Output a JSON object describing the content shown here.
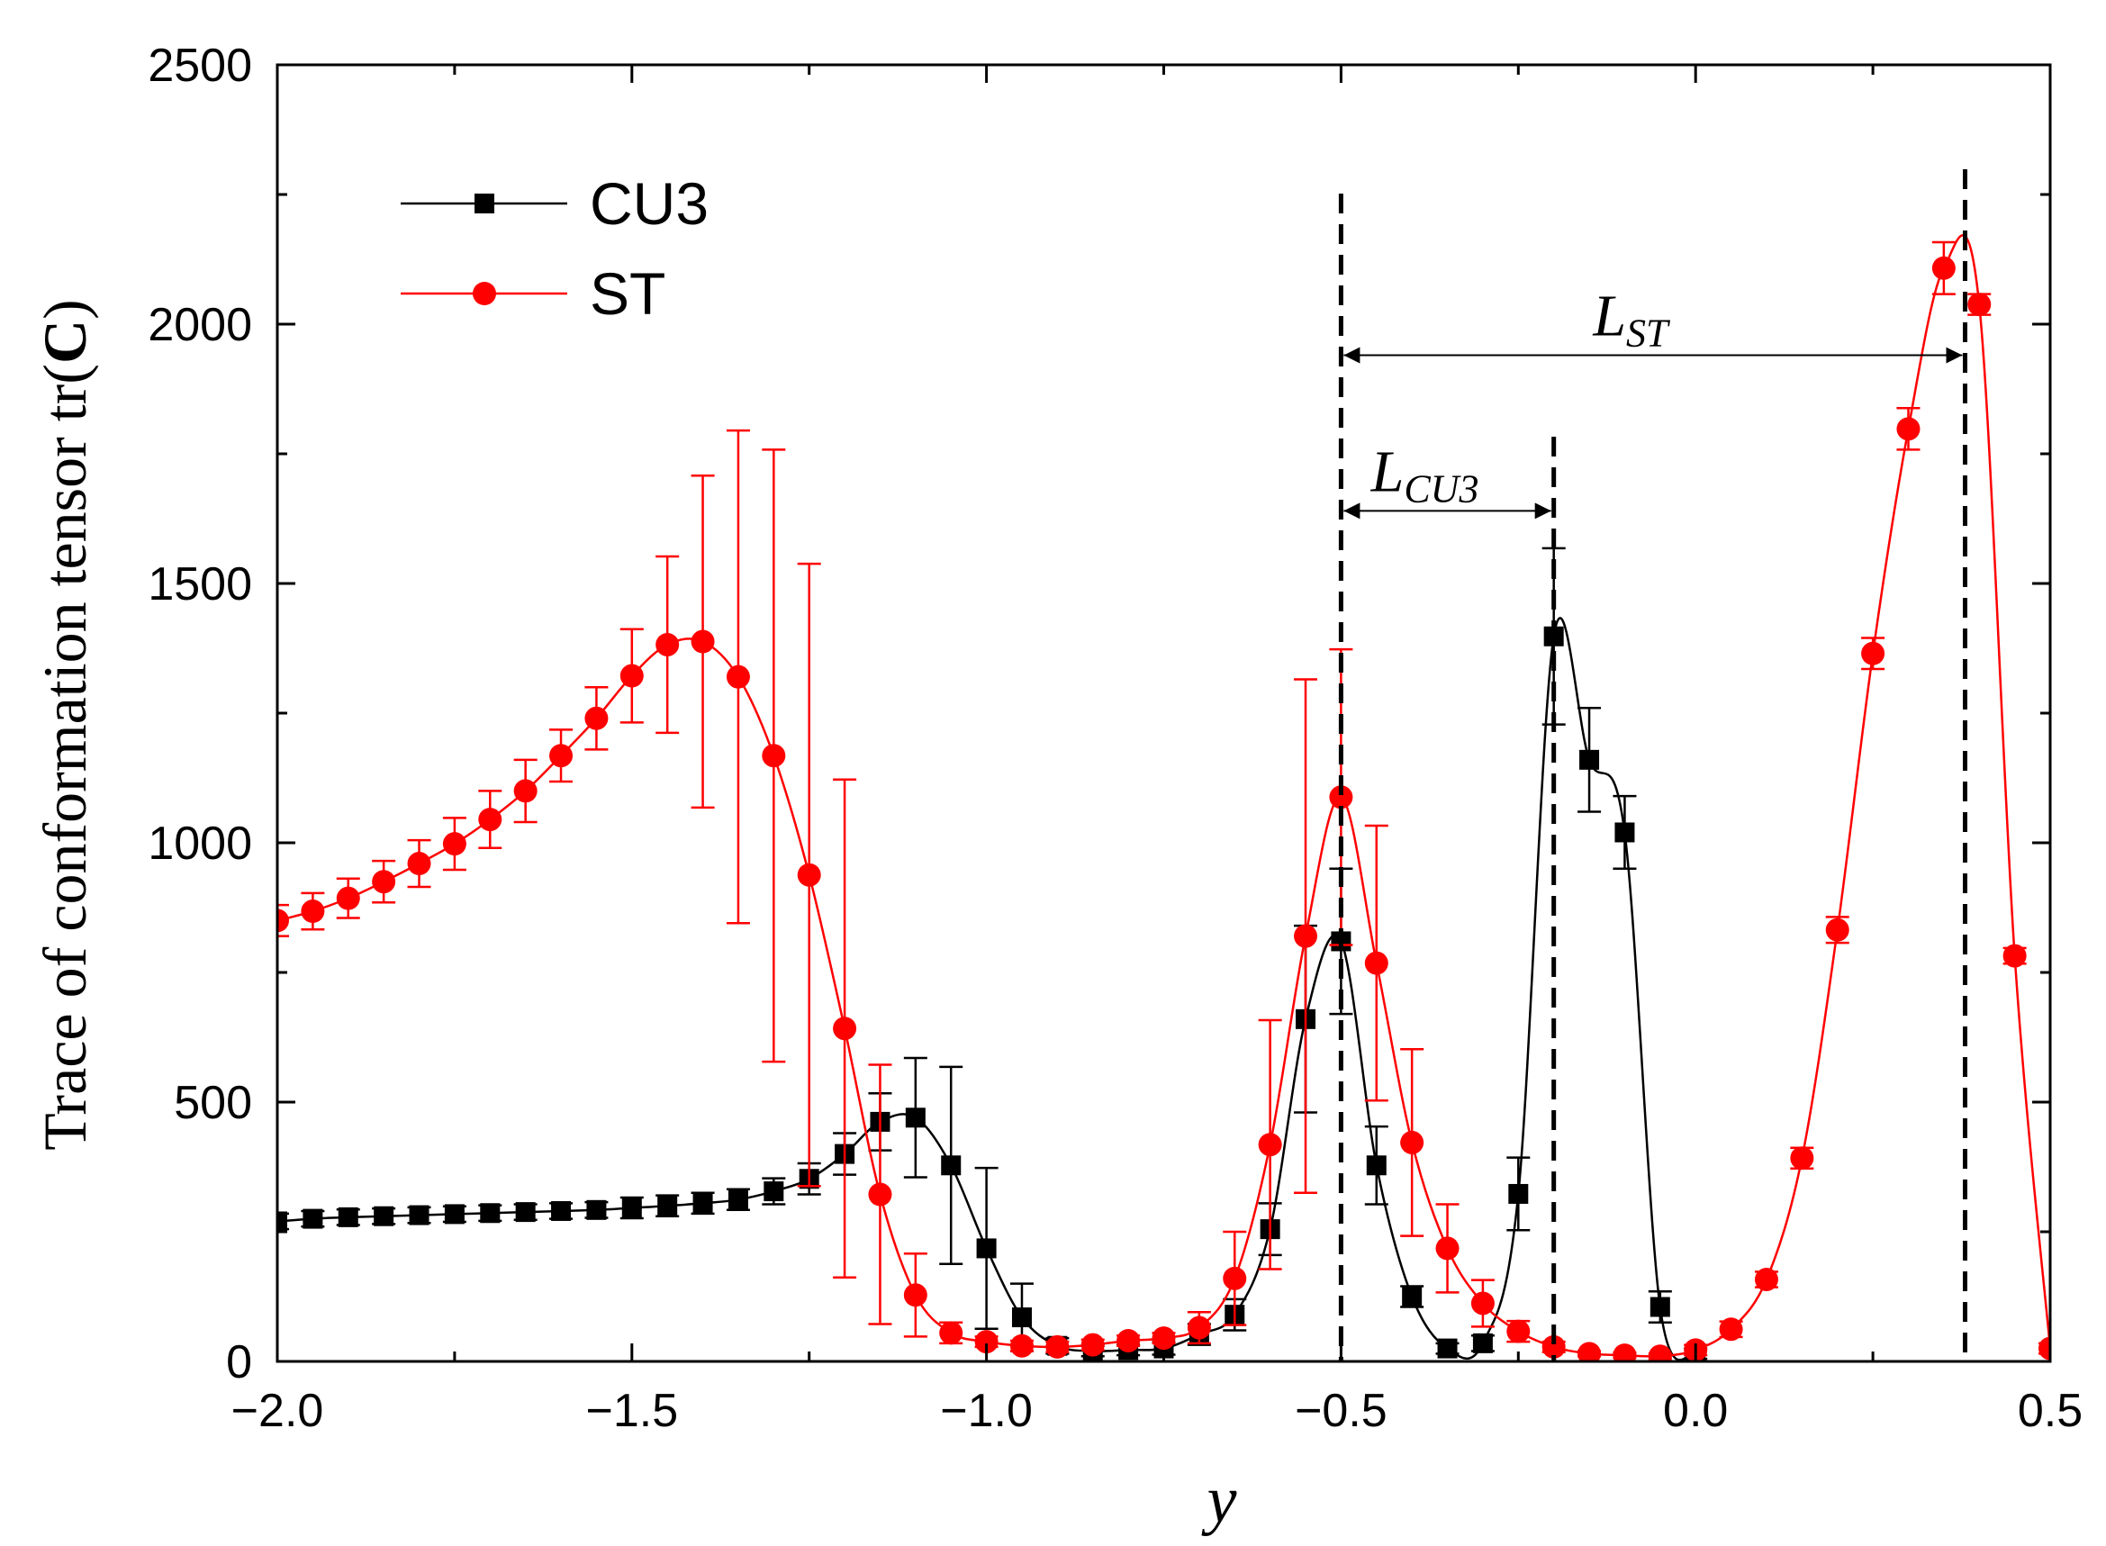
{
  "chart_data": {
    "type": "line",
    "xlabel": "y",
    "ylabel_prefix": "Trace of conformation tensor tr(",
    "ylabel_bold": "C",
    "ylabel_suffix": ")",
    "xlim": [
      -2.0,
      0.5
    ],
    "ylim": [
      0,
      2500
    ],
    "x_ticks": [
      -2.0,
      -1.5,
      -1.0,
      -0.5,
      0.0,
      0.5
    ],
    "x_tick_labels": [
      "−2.0",
      "−1.5",
      "−1.0",
      "−0.5",
      "0.0",
      "0.5"
    ],
    "y_ticks": [
      0,
      500,
      1000,
      1500,
      2000,
      2500
    ],
    "y_tick_labels": [
      "0",
      "500",
      "1000",
      "1500",
      "2000",
      "2500"
    ],
    "grid": false,
    "legend_position": "top-left",
    "series": [
      {
        "name": "CU3",
        "color": "#000000",
        "marker": "square",
        "x": [
          -2.0,
          -1.95,
          -1.9,
          -1.85,
          -1.8,
          -1.75,
          -1.7,
          -1.65,
          -1.6,
          -1.55,
          -1.5,
          -1.45,
          -1.4,
          -1.35,
          -1.3,
          -1.25,
          -1.2,
          -1.15,
          -1.1,
          -1.05,
          -1.0,
          -0.95,
          -0.9,
          -0.85,
          -0.8,
          -0.75,
          -0.7,
          -0.65,
          -0.6,
          -0.55,
          -0.5,
          -0.45,
          -0.4,
          -0.35,
          -0.3,
          -0.25,
          -0.2,
          -0.15,
          -0.1,
          -0.05,
          0.0
        ],
        "y": [
          270,
          275,
          278,
          280,
          282,
          284,
          286,
          288,
          290,
          292,
          296,
          300,
          305,
          312,
          328,
          352,
          400,
          462,
          470,
          378,
          218,
          85,
          30,
          20,
          22,
          25,
          52,
          90,
          255,
          660,
          810,
          378,
          125,
          25,
          35,
          323,
          1398,
          1160,
          1020,
          105,
          15
        ],
        "err": [
          15,
          15,
          15,
          15,
          15,
          15,
          15,
          15,
          15,
          15,
          20,
          20,
          20,
          20,
          25,
          30,
          40,
          55,
          115,
          190,
          155,
          65,
          15,
          10,
          10,
          12,
          20,
          30,
          50,
          180,
          140,
          75,
          20,
          10,
          15,
          70,
          170,
          100,
          70,
          30,
          10
        ]
      },
      {
        "name": "ST",
        "color": "#ff0000",
        "marker": "circle",
        "x": [
          -2.0,
          -1.95,
          -1.9,
          -1.85,
          -1.8,
          -1.75,
          -1.7,
          -1.65,
          -1.6,
          -1.55,
          -1.5,
          -1.45,
          -1.4,
          -1.35,
          -1.3,
          -1.25,
          -1.2,
          -1.15,
          -1.1,
          -1.05,
          -1.0,
          -0.95,
          -0.9,
          -0.85,
          -0.8,
          -0.75,
          -0.7,
          -0.65,
          -0.6,
          -0.55,
          -0.5,
          -0.45,
          -0.4,
          -0.35,
          -0.3,
          -0.25,
          -0.2,
          -0.15,
          -0.1,
          -0.05,
          0.0,
          0.05,
          0.1,
          0.15,
          0.2,
          0.25,
          0.3,
          0.35,
          0.4,
          0.45,
          0.5
        ],
        "y": [
          850,
          868,
          893,
          925,
          960,
          998,
          1045,
          1100,
          1168,
          1240,
          1322,
          1382,
          1388,
          1320,
          1168,
          938,
          642,
          322,
          128,
          55,
          38,
          30,
          28,
          32,
          40,
          45,
          65,
          160,
          418,
          820,
          1088,
          768,
          422,
          218,
          112,
          58,
          28,
          15,
          12,
          10,
          22,
          62,
          158,
          392,
          832,
          1365,
          1798,
          2108,
          2038,
          782,
          25
        ],
        "err": [
          30,
          35,
          38,
          40,
          45,
          50,
          55,
          60,
          50,
          60,
          90,
          170,
          320,
          475,
          590,
          600,
          480,
          250,
          80,
          20,
          10,
          10,
          10,
          10,
          10,
          10,
          30,
          90,
          240,
          495,
          285,
          265,
          180,
          85,
          45,
          20,
          10,
          5,
          5,
          5,
          10,
          15,
          15,
          20,
          25,
          30,
          40,
          50,
          20,
          15,
          10
        ]
      }
    ],
    "annotations": {
      "vlines_x": [
        -0.5,
        -0.2,
        0.38
      ],
      "L_CU3": {
        "label": "L",
        "subscript": "CU3",
        "from_x": -0.5,
        "to_x": -0.2,
        "at_y": 1640
      },
      "L_ST": {
        "label": "L",
        "subscript": "ST",
        "from_x": -0.5,
        "to_x": 0.38,
        "at_y": 1940
      }
    }
  }
}
